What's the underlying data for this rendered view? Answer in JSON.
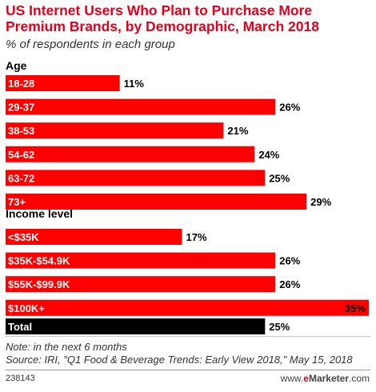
{
  "chart_data": {
    "type": "bar",
    "orientation": "horizontal",
    "title": "US Internet Users Who Plan to Purchase More Premium Brands, by Demographic, March 2018",
    "subtitle": "% of respondents in each group",
    "value_suffix": "%",
    "xlim": [
      0,
      35
    ],
    "grid": false,
    "groups": [
      {
        "name": "Age",
        "categories": [
          "18-28",
          "29-37",
          "38-53",
          "54-62",
          "63-72",
          "73+"
        ],
        "values": [
          11,
          26,
          21,
          24,
          25,
          29
        ]
      },
      {
        "name": "Income level",
        "categories": [
          "<$35K",
          "$35K-$54.9K",
          "$55K-$99.9K",
          "$100K+"
        ],
        "values": [
          17,
          26,
          26,
          35
        ]
      },
      {
        "name": "",
        "categories": [
          "Total"
        ],
        "values": [
          25
        ]
      }
    ],
    "colors": {
      "bar": "#ff0000",
      "total_bar": "#000000",
      "accent": "#e3001b"
    }
  },
  "footer": {
    "note": "Note: in the next 6 months",
    "source": "Source: IRI, \"Q1 Food & Beverage Trends: Early View 2018,\" May 15, 2018",
    "chart_id": "238143",
    "brand_prefix": "e",
    "brand_name": "Marketer",
    "brand_suffix": ".com",
    "brand_domain": "www.eMarketer.com"
  }
}
